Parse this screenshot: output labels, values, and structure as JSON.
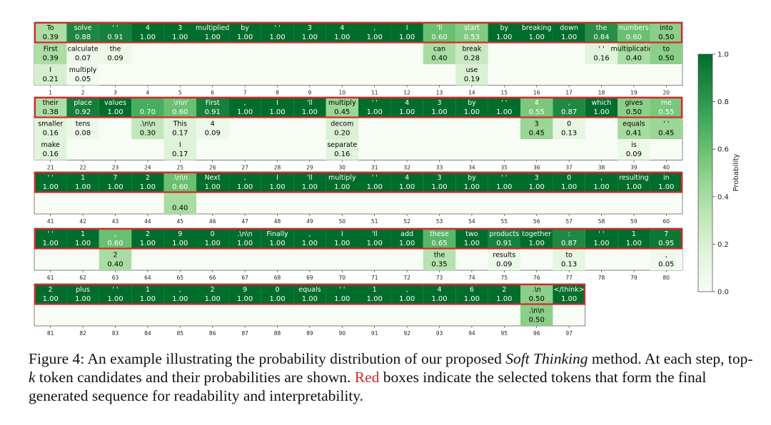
{
  "chart_data": {
    "type": "heatmap",
    "colorbar": {
      "label": "Probability",
      "ticks": [
        "0.0",
        "0.2",
        "0.4",
        "0.6",
        "0.8",
        "1.0"
      ],
      "range": [
        0,
        1
      ],
      "colors": [
        "#f7fcf5",
        "#e5f5e0",
        "#c7e9c0",
        "#a1d99b",
        "#74c476",
        "#41ab5d",
        "#238b45",
        "#006d2c"
      ]
    },
    "highlight_color": "#d62728",
    "panels": [
      {
        "start_step": 1,
        "steps": [
          [
            [
              "To",
              0.39
            ],
            [
              "First",
              0.39
            ],
            [
              "I",
              0.21
            ]
          ],
          [
            [
              "solve",
              0.88
            ],
            [
              "calculate",
              0.07
            ],
            [
              "multiply",
              0.05
            ]
          ],
          [
            [
              "' '",
              0.91
            ],
            [
              "the",
              0.09
            ]
          ],
          [
            [
              "4",
              1.0
            ]
          ],
          [
            [
              "3",
              1.0
            ]
          ],
          [
            [
              "multiplied",
              1.0
            ]
          ],
          [
            [
              "by",
              1.0
            ]
          ],
          [
            [
              "' '",
              1.0
            ]
          ],
          [
            [
              "3",
              1.0
            ]
          ],
          [
            [
              "4",
              1.0
            ]
          ],
          [
            [
              ",",
              1.0
            ]
          ],
          [
            [
              "I",
              1.0
            ]
          ],
          [
            [
              "'ll",
              0.6
            ],
            [
              "can",
              0.4
            ]
          ],
          [
            [
              "start",
              0.53
            ],
            [
              "break",
              0.28
            ],
            [
              "use",
              0.19
            ]
          ],
          [
            [
              "by",
              1.0
            ]
          ],
          [
            [
              "breaking",
              1.0
            ]
          ],
          [
            [
              "down",
              1.0
            ]
          ],
          [
            [
              "the",
              0.84
            ],
            [
              "' '",
              0.16
            ]
          ],
          [
            [
              "numbers",
              0.6
            ],
            [
              "multiplication",
              0.4
            ]
          ],
          [
            [
              "into",
              0.5
            ],
            [
              "to",
              0.5
            ]
          ]
        ]
      },
      {
        "start_step": 21,
        "steps": [
          [
            [
              "their",
              0.38
            ],
            [
              "smaller",
              0.16
            ],
            [
              "make",
              0.16
            ]
          ],
          [
            [
              "place",
              0.92
            ],
            [
              "tens",
              0.08
            ]
          ],
          [
            [
              "values",
              1.0
            ]
          ],
          [
            [
              ".",
              0.7
            ],
            [
              ".\\n\\n",
              0.3
            ]
          ],
          [
            [
              ".\\n\\n'",
              0.6
            ],
            [
              "This",
              0.17
            ],
            [
              "I",
              0.17
            ]
          ],
          [
            [
              "First",
              0.91
            ],
            [
              "4",
              0.09
            ]
          ],
          [
            [
              ",",
              1.0
            ]
          ],
          [
            [
              "I",
              1.0
            ]
          ],
          [
            [
              "'ll",
              1.0
            ]
          ],
          [
            [
              "multiply",
              0.45
            ],
            [
              "decom",
              0.2
            ],
            [
              "separate",
              0.16
            ]
          ],
          [
            [
              "' '",
              1.0
            ]
          ],
          [
            [
              "4",
              1.0
            ]
          ],
          [
            [
              "3",
              1.0
            ]
          ],
          [
            [
              "by",
              1.0
            ]
          ],
          [
            [
              "' '",
              1.0
            ]
          ],
          [
            [
              "4",
              0.55
            ],
            [
              "3",
              0.45
            ]
          ],
          [
            [
              ",",
              0.87
            ],
            [
              "0",
              0.13
            ]
          ],
          [
            [
              "which",
              1.0
            ]
          ],
          [
            [
              "gives",
              0.5
            ],
            [
              "equals",
              0.41
            ],
            [
              "is",
              0.09
            ]
          ],
          [
            [
              "me",
              0.55
            ],
            [
              "' '",
              0.45
            ]
          ]
        ]
      },
      {
        "start_step": 41,
        "steps": [
          [
            [
              "' '",
              1.0
            ]
          ],
          [
            [
              "1",
              1.0
            ]
          ],
          [
            [
              "7",
              1.0
            ]
          ],
          [
            [
              "2",
              1.0
            ]
          ],
          [
            [
              ".\\n\\n",
              0.6
            ],
            [
              "",
              0.4
            ]
          ],
          [
            [
              "Next",
              1.0
            ]
          ],
          [
            [
              ",",
              1.0
            ]
          ],
          [
            [
              "I",
              1.0
            ]
          ],
          [
            [
              "'ll",
              1.0
            ]
          ],
          [
            [
              "multiply",
              1.0
            ]
          ],
          [
            [
              "' '",
              1.0
            ]
          ],
          [
            [
              "4",
              1.0
            ]
          ],
          [
            [
              "3",
              1.0
            ]
          ],
          [
            [
              "by",
              1.0
            ]
          ],
          [
            [
              "' '",
              1.0
            ]
          ],
          [
            [
              "3",
              1.0
            ]
          ],
          [
            [
              "0",
              1.0
            ]
          ],
          [
            [
              ",",
              1.0
            ]
          ],
          [
            [
              "resulting",
              1.0
            ]
          ],
          [
            [
              "in",
              1.0
            ]
          ]
        ]
      },
      {
        "start_step": 61,
        "steps": [
          [
            [
              "' '",
              1.0
            ]
          ],
          [
            [
              "1",
              1.0
            ]
          ],
          [
            [
              ",",
              0.6
            ],
            [
              "2",
              0.4
            ]
          ],
          [
            [
              "2",
              1.0
            ]
          ],
          [
            [
              "9",
              1.0
            ]
          ],
          [
            [
              "0",
              1.0
            ]
          ],
          [
            [
              ".\\n\\n",
              1.0
            ]
          ],
          [
            [
              "Finally",
              1.0
            ]
          ],
          [
            [
              ",",
              1.0
            ]
          ],
          [
            [
              "I",
              1.0
            ]
          ],
          [
            [
              "'ll",
              1.0
            ]
          ],
          [
            [
              "add",
              1.0
            ]
          ],
          [
            [
              "these",
              0.65
            ],
            [
              "the",
              0.35
            ]
          ],
          [
            [
              "two",
              1.0
            ]
          ],
          [
            [
              "products",
              0.91
            ],
            [
              "results",
              0.09
            ]
          ],
          [
            [
              "together",
              1.0
            ]
          ],
          [
            [
              ":",
              0.87
            ],
            [
              "to",
              0.13
            ]
          ],
          [
            [
              "' '",
              1.0
            ]
          ],
          [
            [
              "1",
              1.0
            ]
          ],
          [
            [
              "7",
              0.95
            ],
            [
              ",",
              0.05
            ]
          ]
        ]
      },
      {
        "start_step": 81,
        "steps": [
          [
            [
              "2",
              1.0
            ]
          ],
          [
            [
              "plus",
              1.0
            ]
          ],
          [
            [
              "' '",
              1.0
            ]
          ],
          [
            [
              "1",
              1.0
            ]
          ],
          [
            [
              ",",
              1.0
            ]
          ],
          [
            [
              "2",
              1.0
            ]
          ],
          [
            [
              "9",
              1.0
            ]
          ],
          [
            [
              "0",
              1.0
            ]
          ],
          [
            [
              "equals",
              1.0
            ]
          ],
          [
            [
              "' '",
              1.0
            ]
          ],
          [
            [
              "1",
              1.0
            ]
          ],
          [
            [
              ",",
              1.0
            ]
          ],
          [
            [
              "4",
              1.0
            ]
          ],
          [
            [
              "6",
              1.0
            ]
          ],
          [
            [
              "2",
              1.0
            ]
          ],
          [
            [
              ".\\n",
              0.5
            ],
            [
              ".\\n\\n",
              0.5
            ]
          ],
          [
            [
              "</think>",
              1.0
            ]
          ]
        ]
      }
    ]
  },
  "caption": {
    "part1": "Figure 4: An example illustrating the probability distribution of our proposed ",
    "method": "Soft Thinking",
    "part2": " method. At each step, top-",
    "k": "k",
    "part3": " token candidates and their probabilities are shown. ",
    "red_word": "Red",
    "part4": " boxes indicate the selected tokens that form the final generated sequence for readability and interpretability."
  }
}
